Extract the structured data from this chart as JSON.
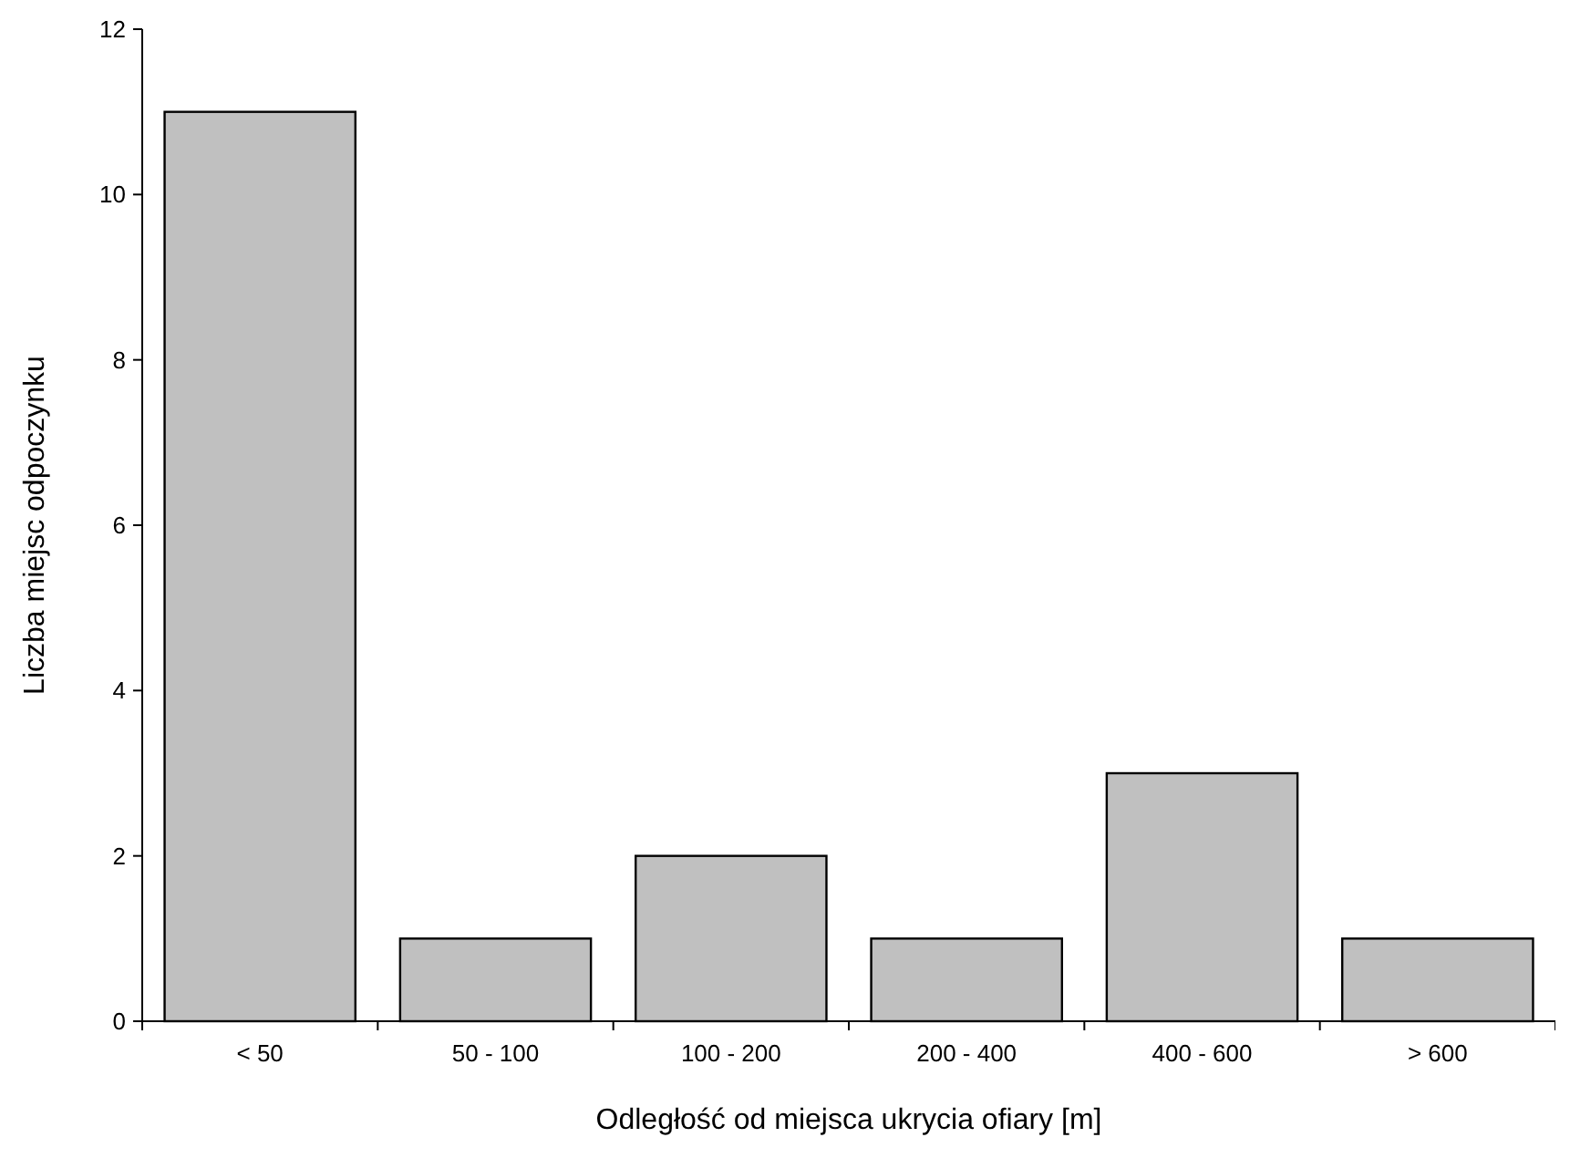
{
  "chart_data": {
    "type": "bar",
    "xlabel": "Odległość od miejsca ukrycia ofiary [m]",
    "ylabel": "Liczba miejsc odpoczynku",
    "categories": [
      "< 50",
      "50 - 100",
      "100 - 200",
      "200 - 400",
      "400 - 600",
      "> 600"
    ],
    "values": [
      11,
      1,
      2,
      1,
      3,
      1
    ],
    "color": "#c0c0c0",
    "ylim": [
      0,
      12
    ],
    "yticks": [
      0,
      2,
      4,
      6,
      8,
      10,
      12
    ],
    "grid": false
  }
}
